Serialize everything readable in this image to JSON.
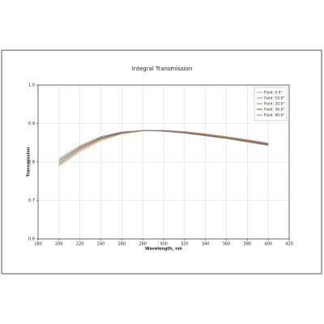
{
  "chart_data": {
    "type": "line",
    "title": "Integral Transmission",
    "x_label": "Wavelength, nm",
    "y_label": "Transmission",
    "x": [
      200,
      220,
      240,
      260,
      280,
      300,
      320,
      340,
      360,
      380,
      400
    ],
    "series": [
      {
        "name": "Field: 0.0°",
        "color": "#e39a52",
        "values": [
          0.79,
          0.828,
          0.856,
          0.873,
          0.881,
          0.882,
          0.879,
          0.873,
          0.866,
          0.858,
          0.849
        ]
      },
      {
        "name": "Field: 10.0°",
        "color": "#9b7cc0",
        "values": [
          0.794,
          0.832,
          0.859,
          0.875,
          0.882,
          0.882,
          0.878,
          0.872,
          0.865,
          0.857,
          0.848
        ]
      },
      {
        "name": "Field: 20.0°",
        "color": "#7f9c4a",
        "values": [
          0.798,
          0.835,
          0.861,
          0.876,
          0.882,
          0.881,
          0.877,
          0.871,
          0.864,
          0.855,
          0.847
        ]
      },
      {
        "name": "Field: 30.0°",
        "color": "#8b4a2b",
        "values": [
          0.803,
          0.838,
          0.863,
          0.877,
          0.882,
          0.881,
          0.876,
          0.87,
          0.862,
          0.854,
          0.845
        ]
      },
      {
        "name": "Field: 40.0°",
        "color": "#8c8c8c",
        "values": [
          0.808,
          0.842,
          0.866,
          0.878,
          0.882,
          0.88,
          0.875,
          0.868,
          0.861,
          0.852,
          0.843
        ]
      }
    ],
    "xlim": [
      180,
      420
    ],
    "xticks": [
      180,
      200,
      220,
      240,
      260,
      280,
      300,
      320,
      340,
      360,
      380,
      400,
      420
    ],
    "ylim": [
      0.6,
      1.0
    ],
    "yticks": [
      0.6,
      0.7,
      0.8,
      0.9,
      {
        "value": 1.0,
        "label": "1.0"
      }
    ],
    "grid": true,
    "legend": "upper right"
  }
}
